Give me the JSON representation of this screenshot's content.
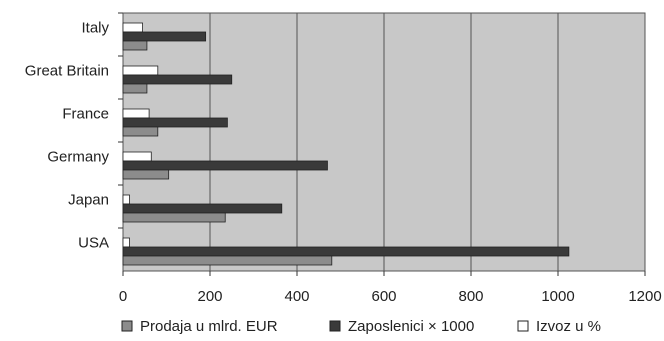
{
  "chart_data": {
    "type": "bar",
    "orientation": "horizontal",
    "categories": [
      "USA",
      "Japan",
      "Germany",
      "France",
      "Great Britain",
      "Italy"
    ],
    "series": [
      {
        "name": "Prodaja u mlrd. EUR",
        "values": [
          480,
          235,
          105,
          80,
          55,
          55
        ],
        "color": "#8c8c8c"
      },
      {
        "name": "Zaposlenici × 1000",
        "values": [
          1025,
          365,
          470,
          240,
          250,
          190
        ],
        "color": "#3a3a3a"
      },
      {
        "name": "Izvoz u %",
        "values": [
          15,
          15,
          65,
          60,
          80,
          45
        ],
        "color": "#ffffff"
      }
    ],
    "xlim": [
      0,
      1200
    ],
    "xticks": [
      "0",
      "200",
      "400",
      "600",
      "800",
      "1000",
      "1200"
    ],
    "grid": true,
    "plot_background": "#c8c8c8",
    "legend_position": "bottom",
    "title": "",
    "xlabel": "",
    "ylabel": ""
  }
}
